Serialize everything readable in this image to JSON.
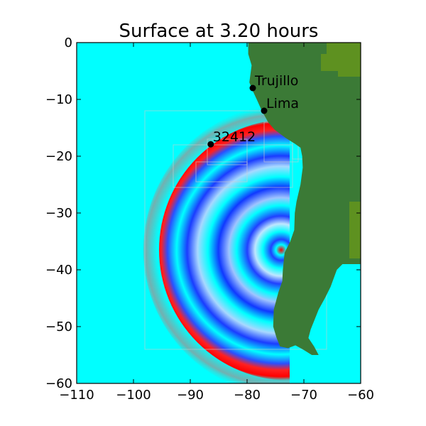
{
  "chart_data": {
    "type": "heatmap",
    "title": "Surface at 3.20 hours",
    "xlabel": "",
    "ylabel": "",
    "xlim": [
      -110,
      -60
    ],
    "ylim": [
      -60,
      0
    ],
    "x_ticks": [
      -110,
      -100,
      -90,
      -80,
      -70,
      -60
    ],
    "y_ticks": [
      0,
      -10,
      -20,
      -30,
      -40,
      -50,
      -60
    ],
    "x_tick_labels": [
      "−110",
      "−100",
      "−90",
      "−80",
      "−70",
      "−60"
    ],
    "y_tick_labels": [
      "0",
      "−10",
      "−20",
      "−30",
      "−40",
      "−50",
      "−60"
    ],
    "locations": [
      {
        "name": "Trujillo",
        "lon": -79,
        "lat": -8
      },
      {
        "name": "Lima",
        "lon": -77,
        "lat": -12
      },
      {
        "name": "32412",
        "lon": -86.4,
        "lat": -17.9
      }
    ],
    "wave_source": {
      "lon": -72.5,
      "lat": -36.5
    },
    "wavefront_radius_deg": 23,
    "grid": false,
    "colors": {
      "ocean": "#00ffff",
      "land": "#3b7a36",
      "land_highland": "#6b9a1a",
      "wave_crest": "#ff0000",
      "wave_trough": "#0033ff",
      "grid_patch_outline": "#cccccc",
      "marker": "#000000"
    }
  }
}
